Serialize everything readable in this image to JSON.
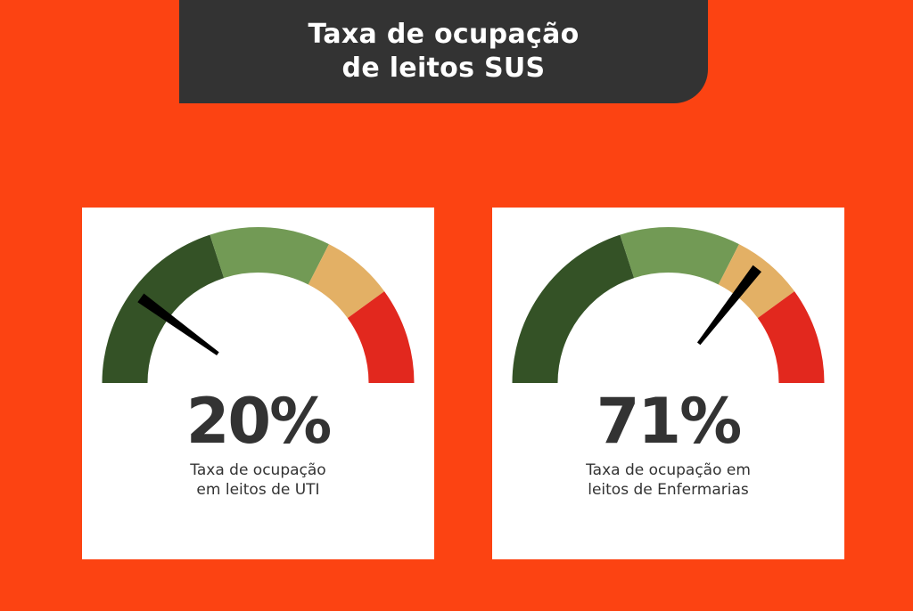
{
  "header": {
    "title_line1": "Taxa de ocupação",
    "title_line2": "de leitos SUS"
  },
  "chart_data": [
    {
      "type": "gauge",
      "value": 20,
      "value_label": "20%",
      "caption_line1": "Taxa de ocupação",
      "caption_line2": "em leitos de UTI",
      "range": [
        0,
        100
      ],
      "segments": [
        {
          "from": 0,
          "to": 40,
          "color": "#345226"
        },
        {
          "from": 40,
          "to": 65,
          "color": "#729a55"
        },
        {
          "from": 65,
          "to": 80,
          "color": "#e3b065"
        },
        {
          "from": 80,
          "to": 100,
          "color": "#e2281e"
        }
      ],
      "needle_color": "#000000"
    },
    {
      "type": "gauge",
      "value": 71,
      "value_label": "71%",
      "caption_line1": "Taxa de ocupação em",
      "caption_line2": "leitos de Enfermarias",
      "range": [
        0,
        100
      ],
      "segments": [
        {
          "from": 0,
          "to": 40,
          "color": "#345226"
        },
        {
          "from": 40,
          "to": 65,
          "color": "#729a55"
        },
        {
          "from": 65,
          "to": 80,
          "color": "#e3b065"
        },
        {
          "from": 80,
          "to": 100,
          "color": "#e2281e"
        }
      ],
      "needle_color": "#000000"
    }
  ]
}
